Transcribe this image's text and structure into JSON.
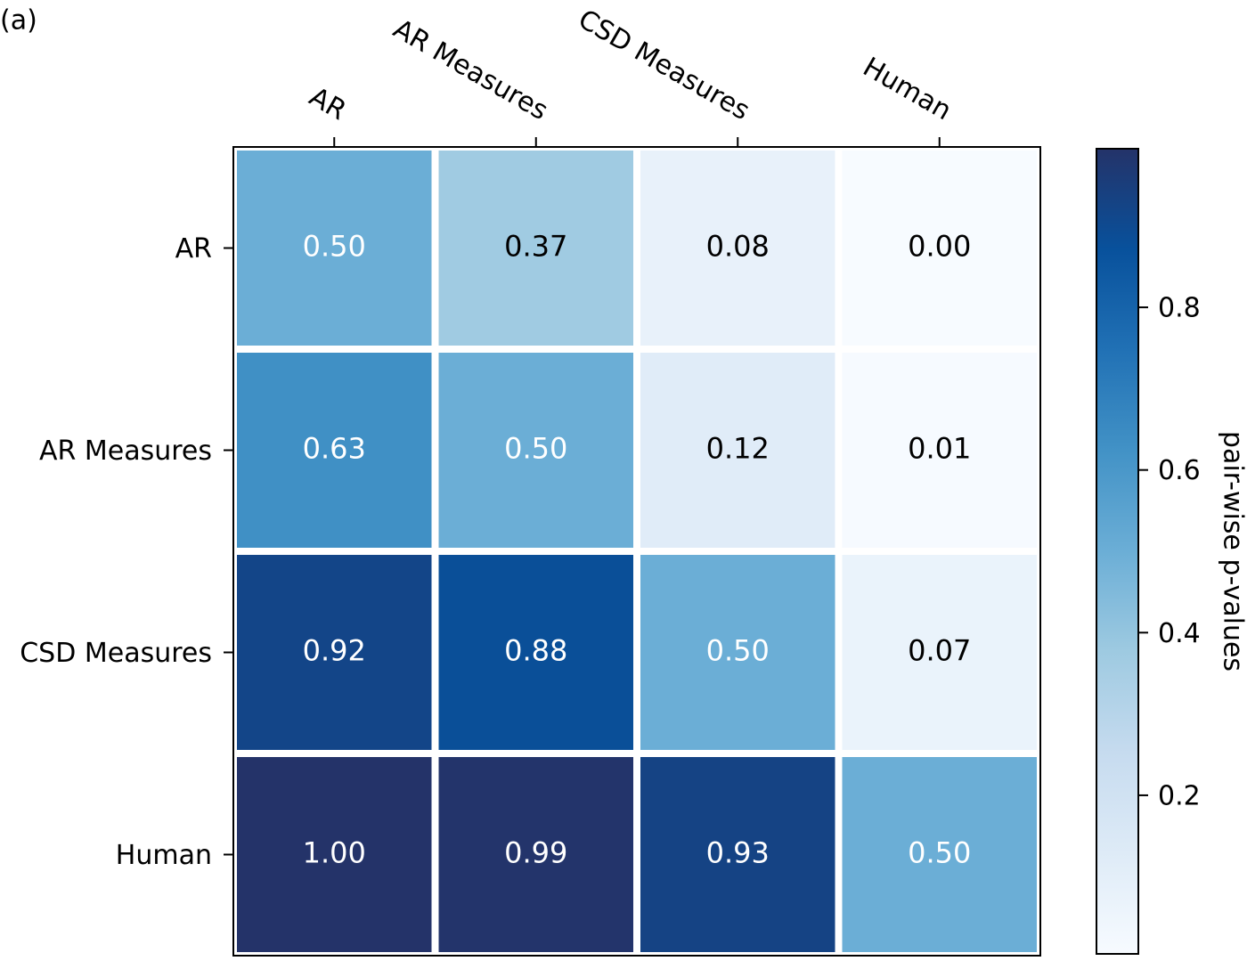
{
  "panel_label": "(a)",
  "chart_data": {
    "type": "heatmap",
    "x_categories": [
      "AR",
      "AR Measures",
      "CSD Measures",
      "Human"
    ],
    "y_categories": [
      "AR",
      "AR Measures",
      "CSD Measures",
      "Human"
    ],
    "values": [
      [
        0.5,
        0.37,
        0.08,
        0.0
      ],
      [
        0.63,
        0.5,
        0.12,
        0.01
      ],
      [
        0.92,
        0.88,
        0.5,
        0.07
      ],
      [
        1.0,
        0.99,
        0.93,
        0.5
      ]
    ],
    "value_labels": [
      [
        "0.50",
        "0.37",
        "0.08",
        "0.00"
      ],
      [
        "0.63",
        "0.50",
        "0.12",
        "0.01"
      ],
      [
        "0.92",
        "0.88",
        "0.50",
        "0.07"
      ],
      [
        "1.00",
        "0.99",
        "0.93",
        "0.50"
      ]
    ],
    "colormap": [
      "#f7fbff",
      "#deebf7",
      "#c6dbef",
      "#9ecae1",
      "#6baed6",
      "#4292c6",
      "#2171b5",
      "#08519c",
      "#243369"
    ],
    "colorbar": {
      "label": "pair-wise p-values",
      "clim": [
        0.005,
        0.995
      ],
      "ticks": [
        0.2,
        0.4,
        0.6,
        0.8
      ]
    }
  }
}
